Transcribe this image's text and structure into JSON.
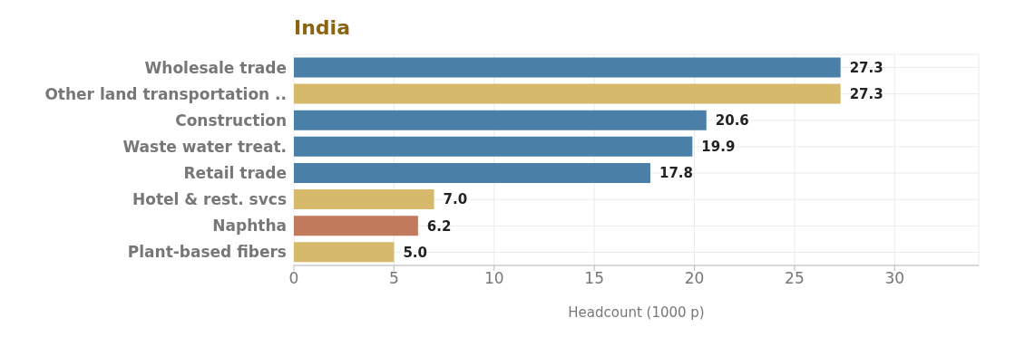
{
  "chart_data": {
    "type": "bar",
    "orientation": "horizontal",
    "title": "India",
    "xlabel": "Headcount (1000 p)",
    "categories": [
      "Wholesale trade",
      "Other land transportation ..",
      "Construction",
      "Waste water treat.",
      "Retail trade",
      "Hotel & rest. svcs",
      "Naphtha",
      "Plant-based fibers"
    ],
    "values": [
      27.3,
      27.3,
      20.6,
      19.9,
      17.8,
      7.0,
      6.2,
      5.0
    ],
    "value_labels": [
      "27.3",
      "27.3",
      "20.6",
      "19.9",
      "17.8",
      "7.0",
      "6.2",
      "5.0"
    ],
    "colors": [
      "#4a7fa8",
      "#d6b96a",
      "#4a7fa8",
      "#4a7fa8",
      "#4a7fa8",
      "#d6b96a",
      "#c17a5b",
      "#d6b96a"
    ],
    "xlim": [
      0,
      34.2
    ],
    "xticks": [
      0,
      5,
      10,
      15,
      20,
      25,
      30
    ],
    "grid": true
  }
}
